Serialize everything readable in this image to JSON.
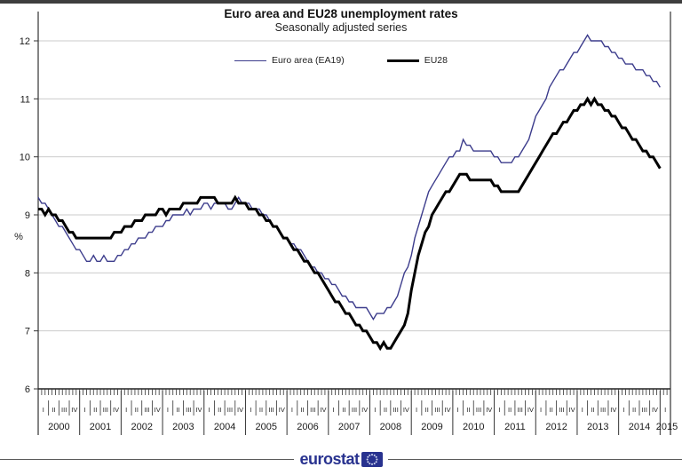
{
  "title": "Euro area and EU28 unemployment rates",
  "subtitle": "Seasonally adjusted series",
  "legend": {
    "items": [
      {
        "label": "Euro area (EA19)",
        "color": "#3c3c8c",
        "thickness": 1.4
      },
      {
        "label": "EU28",
        "color": "#000000",
        "thickness": 3
      }
    ]
  },
  "footer": {
    "logo_text": "eurostat"
  },
  "colors": {
    "euro_area_line": "#3c3c8c",
    "eu28_line": "#000000",
    "gridline": "#cbcbcb",
    "axis": "#333333",
    "logo_blue": "#28328f",
    "logo_stars": "#d6ddf3"
  },
  "chart_data": {
    "type": "line",
    "title": "Euro area and EU28 unemployment rates",
    "subtitle": "Seasonally adjusted series",
    "ylabel": "%",
    "ylim": [
      6,
      12
    ],
    "yticks": [
      6,
      7,
      8,
      9,
      10,
      11,
      12
    ],
    "grid": "horizontal",
    "legend_position": "top",
    "x_unit": "month",
    "x_start": "2000-01",
    "x_end": "2015-01",
    "years": [
      "2000",
      "2001",
      "2002",
      "2003",
      "2004",
      "2005",
      "2006",
      "2007",
      "2008",
      "2009",
      "2010",
      "2011",
      "2012",
      "2013",
      "2014",
      "2015"
    ],
    "quarter_labels": [
      "I",
      "II",
      "III",
      "IV"
    ],
    "series": [
      {
        "name": "Euro area (EA19)",
        "color": "#3c3c8c",
        "stroke_width": 1.4,
        "values": [
          9.3,
          9.2,
          9.2,
          9.1,
          9.0,
          8.9,
          8.8,
          8.8,
          8.7,
          8.6,
          8.5,
          8.4,
          8.4,
          8.3,
          8.2,
          8.2,
          8.3,
          8.2,
          8.2,
          8.3,
          8.2,
          8.2,
          8.2,
          8.3,
          8.3,
          8.4,
          8.4,
          8.5,
          8.5,
          8.6,
          8.6,
          8.6,
          8.7,
          8.7,
          8.8,
          8.8,
          8.8,
          8.9,
          8.9,
          9.0,
          9.0,
          9.0,
          9.0,
          9.1,
          9.0,
          9.1,
          9.1,
          9.1,
          9.2,
          9.2,
          9.1,
          9.2,
          9.2,
          9.2,
          9.2,
          9.1,
          9.1,
          9.2,
          9.3,
          9.2,
          9.2,
          9.2,
          9.1,
          9.1,
          9.1,
          9.0,
          9.0,
          8.9,
          8.8,
          8.8,
          8.7,
          8.6,
          8.6,
          8.5,
          8.5,
          8.4,
          8.4,
          8.3,
          8.2,
          8.1,
          8.1,
          8.0,
          8.0,
          7.9,
          7.9,
          7.8,
          7.8,
          7.7,
          7.6,
          7.6,
          7.5,
          7.5,
          7.4,
          7.4,
          7.4,
          7.4,
          7.3,
          7.2,
          7.3,
          7.3,
          7.3,
          7.4,
          7.4,
          7.5,
          7.6,
          7.8,
          8.0,
          8.1,
          8.3,
          8.6,
          8.8,
          9.0,
          9.2,
          9.4,
          9.5,
          9.6,
          9.7,
          9.8,
          9.9,
          10.0,
          10.0,
          10.1,
          10.1,
          10.3,
          10.2,
          10.2,
          10.1,
          10.1,
          10.1,
          10.1,
          10.1,
          10.1,
          10.0,
          10.0,
          9.9,
          9.9,
          9.9,
          9.9,
          10.0,
          10.0,
          10.1,
          10.2,
          10.3,
          10.5,
          10.7,
          10.8,
          10.9,
          11.0,
          11.2,
          11.3,
          11.4,
          11.5,
          11.5,
          11.6,
          11.7,
          11.8,
          11.8,
          11.9,
          12.0,
          12.1,
          12.0,
          12.0,
          12.0,
          12.0,
          11.9,
          11.9,
          11.8,
          11.8,
          11.7,
          11.7,
          11.6,
          11.6,
          11.6,
          11.5,
          11.5,
          11.5,
          11.4,
          11.4,
          11.3,
          11.3,
          11.2
        ]
      },
      {
        "name": "EU28",
        "color": "#000000",
        "stroke_width": 3,
        "values": [
          9.1,
          9.1,
          9.0,
          9.1,
          9.0,
          9.0,
          8.9,
          8.9,
          8.8,
          8.7,
          8.7,
          8.6,
          8.6,
          8.6,
          8.6,
          8.6,
          8.6,
          8.6,
          8.6,
          8.6,
          8.6,
          8.6,
          8.7,
          8.7,
          8.7,
          8.8,
          8.8,
          8.8,
          8.9,
          8.9,
          8.9,
          9.0,
          9.0,
          9.0,
          9.0,
          9.1,
          9.1,
          9.0,
          9.1,
          9.1,
          9.1,
          9.1,
          9.2,
          9.2,
          9.2,
          9.2,
          9.2,
          9.3,
          9.3,
          9.3,
          9.3,
          9.3,
          9.2,
          9.2,
          9.2,
          9.2,
          9.2,
          9.3,
          9.2,
          9.2,
          9.2,
          9.1,
          9.1,
          9.1,
          9.0,
          9.0,
          8.9,
          8.9,
          8.8,
          8.8,
          8.7,
          8.6,
          8.6,
          8.5,
          8.4,
          8.4,
          8.3,
          8.2,
          8.2,
          8.1,
          8.0,
          8.0,
          7.9,
          7.8,
          7.7,
          7.6,
          7.5,
          7.5,
          7.4,
          7.3,
          7.3,
          7.2,
          7.1,
          7.1,
          7.0,
          7.0,
          6.9,
          6.8,
          6.8,
          6.7,
          6.8,
          6.7,
          6.7,
          6.8,
          6.9,
          7.0,
          7.1,
          7.3,
          7.7,
          8.0,
          8.3,
          8.5,
          8.7,
          8.8,
          9.0,
          9.1,
          9.2,
          9.3,
          9.4,
          9.4,
          9.5,
          9.6,
          9.7,
          9.7,
          9.7,
          9.6,
          9.6,
          9.6,
          9.6,
          9.6,
          9.6,
          9.6,
          9.5,
          9.5,
          9.4,
          9.4,
          9.4,
          9.4,
          9.4,
          9.4,
          9.5,
          9.6,
          9.7,
          9.8,
          9.9,
          10.0,
          10.1,
          10.2,
          10.3,
          10.4,
          10.4,
          10.5,
          10.6,
          10.6,
          10.7,
          10.8,
          10.8,
          10.9,
          10.9,
          11.0,
          10.9,
          11.0,
          10.9,
          10.9,
          10.8,
          10.8,
          10.7,
          10.7,
          10.6,
          10.5,
          10.5,
          10.4,
          10.3,
          10.3,
          10.2,
          10.1,
          10.1,
          10.0,
          10.0,
          9.9,
          9.8
        ]
      }
    ]
  }
}
